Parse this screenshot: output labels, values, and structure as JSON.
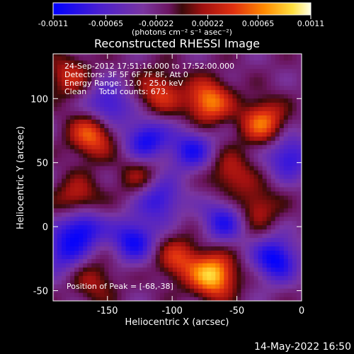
{
  "colorbar": {
    "tick_labels": [
      "-0.0011",
      "-0.00065",
      "-0.00022",
      "0.00022",
      "0.00065",
      "0.0011"
    ],
    "tick_values": [
      -0.0011,
      -0.00065,
      -0.00022,
      0.00022,
      0.00065,
      0.0011
    ],
    "range": [
      -0.0011,
      0.0011
    ],
    "unit_label": "(photons cm⁻² s⁻¹ asec⁻²)"
  },
  "chart_data": {
    "type": "heatmap",
    "title": "Reconstructed RHESSI Image",
    "xlabel": "Heliocentric X (arcsec)",
    "ylabel": "Heliocentric Y (arcsec)",
    "xlim": [
      -192,
      0
    ],
    "ylim": [
      -58,
      135
    ],
    "x_ticks": [
      -150,
      -100,
      -50,
      0
    ],
    "y_ticks": [
      -50,
      0,
      50,
      100
    ],
    "colormap": [
      "#0000ff",
      "#5a2bbf",
      "#7a35a0",
      "#7a1a1a",
      "#d11a0a",
      "#ff6600",
      "#ffd11a",
      "#ffffcc"
    ],
    "peaks": [
      {
        "x": -68,
        "y": -38,
        "intensity": 0.0011
      },
      {
        "x": -72,
        "y": 98,
        "intensity": 0.0009
      },
      {
        "x": -162,
        "y": 72,
        "intensity": 0.0008
      },
      {
        "x": -173,
        "y": 21,
        "intensity": 0.0006
      },
      {
        "x": -30,
        "y": 82,
        "intensity": 0.0008
      },
      {
        "x": -110,
        "y": 105,
        "intensity": 0.0006
      },
      {
        "x": -55,
        "y": 42,
        "intensity": 0.0005
      },
      {
        "x": -35,
        "y": 15,
        "intensity": 0.0005
      },
      {
        "x": -95,
        "y": -25,
        "intensity": 0.0006
      },
      {
        "x": -160,
        "y": -42,
        "intensity": 0.0004
      },
      {
        "x": -180,
        "y": 118,
        "intensity": 0.0005
      },
      {
        "x": -125,
        "y": 40,
        "intensity": 0.0004
      }
    ],
    "troughs": [
      {
        "x": -170,
        "y": 0,
        "intensity": -0.0009
      },
      {
        "x": -120,
        "y": 68,
        "intensity": -0.0008
      },
      {
        "x": -150,
        "y": 95,
        "intensity": -0.0007
      },
      {
        "x": -85,
        "y": 60,
        "intensity": -0.0007
      },
      {
        "x": -20,
        "y": -25,
        "intensity": -0.0009
      },
      {
        "x": -130,
        "y": -10,
        "intensity": -0.0008
      },
      {
        "x": -60,
        "y": 5,
        "intensity": -0.0007
      },
      {
        "x": -110,
        "y": 22,
        "intensity": -0.0007
      },
      {
        "x": -10,
        "y": 55,
        "intensity": -0.0007
      },
      {
        "x": -185,
        "y": -20,
        "intensity": -0.0006
      }
    ]
  },
  "annotations": {
    "line1": "24-Sep-2012 17:51:16.000 to 17:52:00.000",
    "line2": "Detectors: 3F 5F 6F 7F 8F, Att 0",
    "line3": "Energy Range: 12.0 - 25.0 keV",
    "line4": "Clean     Total counts: 673.",
    "peak": "Position of Peak = [-68,-38]"
  },
  "footer": {
    "timestamp": "14-May-2022 16:50"
  }
}
